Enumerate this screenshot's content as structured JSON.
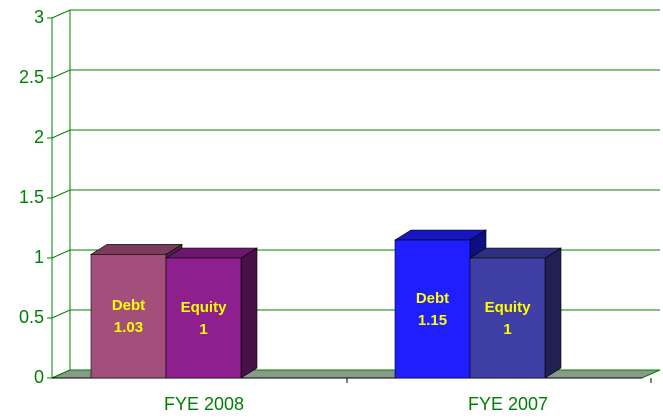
{
  "chart_data": {
    "type": "bar3d",
    "categories": [
      "FYE 2008",
      "FYE 2007"
    ],
    "series": [
      {
        "name": "Debt",
        "colors": [
          "#a24f7c",
          "#1e1eff"
        ],
        "values": [
          1.03,
          1.15
        ]
      },
      {
        "name": "Equity",
        "colors": [
          "#8e1f8e",
          "#3f3fa6"
        ],
        "values": [
          1,
          1
        ]
      }
    ],
    "ylim": [
      0,
      3
    ],
    "yticks": [
      0,
      0.5,
      1,
      1.5,
      2,
      2.5,
      3
    ],
    "grid": true,
    "axis_color": "#008000",
    "floor_color": "#8a9a8a"
  }
}
